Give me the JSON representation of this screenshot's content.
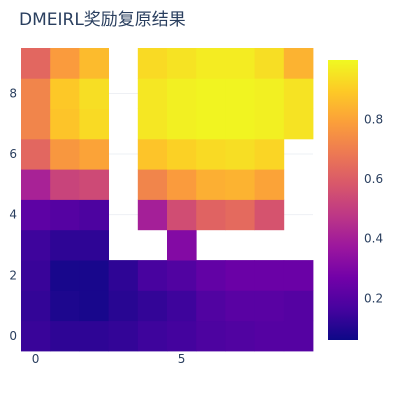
{
  "chart_data": {
    "type": "heatmap",
    "title": "DMEIRL奖励复原结果",
    "xlabel": "",
    "ylabel": "",
    "x_range": [
      -0.5,
      9.5
    ],
    "y_range": [
      -0.5,
      9.5
    ],
    "x_ticks": [
      0,
      5
    ],
    "y_ticks": [
      0,
      2,
      4,
      6,
      8
    ],
    "x": [
      0,
      1,
      2,
      3,
      4,
      5,
      6,
      7,
      8,
      9
    ],
    "y": [
      0,
      1,
      2,
      3,
      4,
      5,
      6,
      7,
      8,
      9
    ],
    "z": [
      [
        0.14,
        0.12,
        0.12,
        0.13,
        0.15,
        0.16,
        0.18,
        0.19,
        0.2,
        0.2
      ],
      [
        0.13,
        0.09,
        0.08,
        0.11,
        0.13,
        0.15,
        0.19,
        0.21,
        0.21,
        0.2
      ],
      [
        0.14,
        0.08,
        0.08,
        0.12,
        0.17,
        0.19,
        0.23,
        0.25,
        0.25,
        0.25
      ],
      [
        0.15,
        0.12,
        0.12,
        null,
        null,
        0.31,
        null,
        null,
        null,
        null
      ],
      [
        0.22,
        0.2,
        0.18,
        null,
        0.4,
        0.55,
        0.62,
        0.64,
        0.57,
        null
      ],
      [
        0.41,
        0.52,
        0.54,
        null,
        0.72,
        0.78,
        0.83,
        0.84,
        0.8,
        null
      ],
      [
        0.63,
        0.77,
        0.8,
        null,
        0.88,
        0.91,
        0.93,
        0.94,
        0.92,
        null
      ],
      [
        0.72,
        0.88,
        0.93,
        null,
        0.96,
        0.98,
        0.99,
        0.99,
        0.98,
        0.95
      ],
      [
        0.72,
        0.89,
        0.94,
        null,
        0.96,
        0.98,
        0.99,
        0.99,
        0.98,
        0.95
      ],
      [
        0.63,
        0.78,
        0.86,
        null,
        0.93,
        0.95,
        0.97,
        0.97,
        0.94,
        0.84
      ]
    ],
    "colorscale": [
      "#0d0887",
      "#46039f",
      "#7201a8",
      "#9c179e",
      "#bd3786",
      "#d8576b",
      "#ed7953",
      "#fb9f3a",
      "#fdca26",
      "#f0f921"
    ],
    "zmin": 0.06,
    "zmax": 1.0,
    "colorbar_ticks": [
      0.2,
      0.4,
      0.6,
      0.8
    ]
  }
}
